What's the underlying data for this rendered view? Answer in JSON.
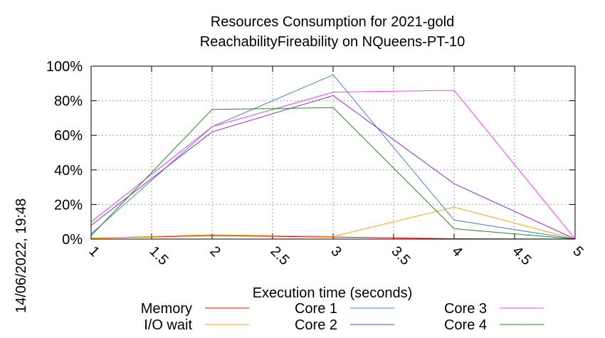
{
  "title_line1": "Resources Consumption for 2021-gold",
  "title_line2": "ReachabilityFireability on NQueens-PT-10",
  "timestamp": "14/06/2022, 19:48",
  "chart_data": {
    "type": "line",
    "title": "Resources Consumption for 2021-gold ReachabilityFireability on NQueens-PT-10",
    "xlabel": "Execution time (seconds)",
    "ylabel": "",
    "xlim": [
      1,
      5
    ],
    "ylim": [
      0,
      100
    ],
    "x_ticks": [
      "1",
      "1.5",
      "2",
      "2.5",
      "3",
      "3.5",
      "4",
      "4.5",
      "5"
    ],
    "y_ticks": [
      "0%",
      "20%",
      "40%",
      "60%",
      "80%",
      "100%"
    ],
    "grid": true,
    "legend_placement": "bottom",
    "x": [
      1,
      2,
      3,
      4,
      5
    ],
    "series": [
      {
        "name": "Memory",
        "color": "#ff0000",
        "values": [
          0.5,
          2.0,
          1.2,
          0.2,
          0
        ]
      },
      {
        "name": "I/O wait",
        "color": "#ffa500",
        "values": [
          0.5,
          2.5,
          1.5,
          18.5,
          0
        ]
      },
      {
        "name": "Core 1",
        "color": "#4a7fd6",
        "values": [
          3,
          65,
          95,
          11,
          0
        ]
      },
      {
        "name": "Core 2",
        "color": "#8a2be2",
        "values": [
          8,
          62,
          83,
          32,
          0
        ]
      },
      {
        "name": "Core 3",
        "color": "#ff40ff",
        "values": [
          10,
          65,
          85,
          86,
          0
        ]
      },
      {
        "name": "Core 4",
        "color": "#228b22",
        "values": [
          2,
          75,
          76,
          6,
          0
        ]
      }
    ]
  }
}
